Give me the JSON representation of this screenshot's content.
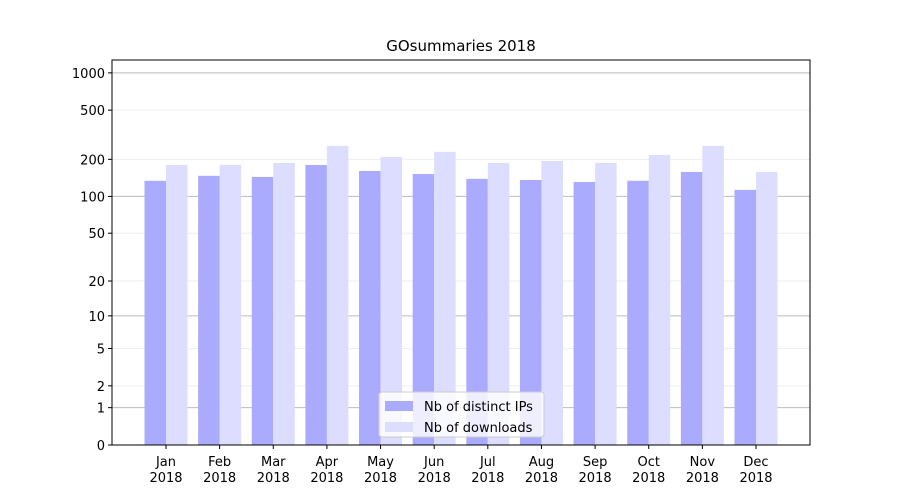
{
  "chart_data": {
    "type": "bar",
    "title": "GOsummaries 2018",
    "categories": [
      [
        "Jan",
        "2018"
      ],
      [
        "Feb",
        "2018"
      ],
      [
        "Mar",
        "2018"
      ],
      [
        "Apr",
        "2018"
      ],
      [
        "May",
        "2018"
      ],
      [
        "Jun",
        "2018"
      ],
      [
        "Jul",
        "2018"
      ],
      [
        "Aug",
        "2018"
      ],
      [
        "Sep",
        "2018"
      ],
      [
        "Oct",
        "2018"
      ],
      [
        "Nov",
        "2018"
      ],
      [
        "Dec",
        "2018"
      ]
    ],
    "series": [
      {
        "name": "Nb of distinct IPs",
        "color": "#aaaaff",
        "values": [
          134,
          147,
          144,
          180,
          161,
          152,
          139,
          136,
          131,
          134,
          158,
          113
        ]
      },
      {
        "name": "Nb of downloads",
        "color": "#ddddff",
        "values": [
          180,
          180,
          187,
          257,
          209,
          230,
          187,
          194,
          187,
          217,
          257,
          158
        ]
      }
    ],
    "yscale": "log1p",
    "ylim": [
      0,
      1270
    ],
    "yticks": [
      0,
      1,
      2,
      5,
      10,
      20,
      50,
      100,
      200,
      500,
      1000
    ],
    "grid": true,
    "legend": "lower center"
  }
}
